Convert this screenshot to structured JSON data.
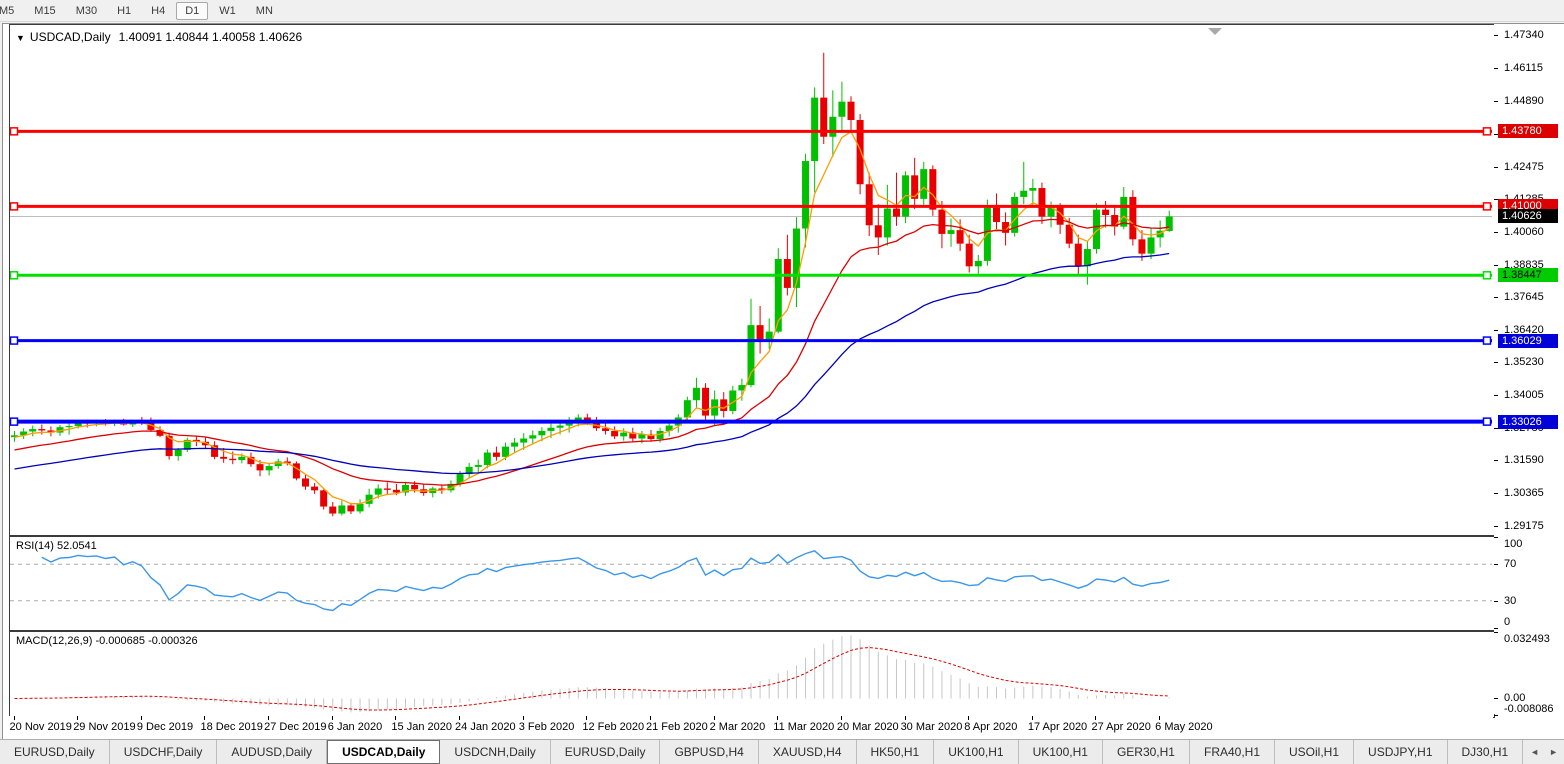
{
  "toolbar": {
    "timeframes": [
      "M5",
      "M15",
      "M30",
      "H1",
      "H4",
      "D1",
      "W1",
      "MN"
    ],
    "active": "D1"
  },
  "chart": {
    "symbol_label": "USDCAD,Daily",
    "ohlc_text": "1.40091 1.40844 1.40058 1.40626",
    "open": "1.40091",
    "high": "1.40844",
    "low": "1.40058",
    "close": "1.40626",
    "shift_marker": "chart-shift-triangle"
  },
  "colors": {
    "bull": "#00c000",
    "bear": "#e80000",
    "ma_fast": "#ff9c00",
    "ma_mid": "#dd0000",
    "ma_slow": "#0000bb",
    "hline_red": "#ff0000",
    "hline_green": "#00e000",
    "hline_blue": "#0000ff",
    "current_price_line": "#bdbdbd",
    "rsi_line": "#3a97e8",
    "rsi_levels": "#a8a8a8",
    "macd_hist": "#c6c6c6",
    "macd_signal": "#e00000",
    "badge_red": "#dd0000",
    "badge_green": "#00cc00",
    "badge_blue": "#0000d8",
    "badge_black": "#000000"
  },
  "price_axis": {
    "ticks": [
      "1.47340",
      "1.46115",
      "1.44890",
      "1.43665",
      "1.42475",
      "1.41285",
      "1.40060",
      "1.38835",
      "1.37645",
      "1.36420",
      "1.35230",
      "1.34005",
      "1.32780",
      "1.31590",
      "1.30365",
      "1.29175"
    ],
    "badges": [
      {
        "value": "1.43780",
        "bg": "#dd0000",
        "fg": "#ffffff"
      },
      {
        "value": "1.41000",
        "bg": "#dd0000",
        "fg": "#ffffff"
      },
      {
        "value": "1.40626",
        "bg": "#000000",
        "fg": "#ffffff"
      },
      {
        "value": "1.38447",
        "bg": "#00cc00",
        "fg": "#000000"
      },
      {
        "value": "1.36029",
        "bg": "#0000d8",
        "fg": "#ffffff"
      },
      {
        "value": "1.33026",
        "bg": "#0000d8",
        "fg": "#ffffff"
      }
    ]
  },
  "hlines": [
    {
      "price": 1.4378,
      "color": "#ff0000",
      "width": 3
    },
    {
      "price": 1.41,
      "color": "#ff0000",
      "width": 3
    },
    {
      "price": 1.38447,
      "color": "#00e000",
      "width": 3
    },
    {
      "price": 1.36029,
      "color": "#0000ff",
      "width": 3
    },
    {
      "price": 1.33026,
      "color": "#0000ff",
      "width": 4
    }
  ],
  "current_price": 1.40626,
  "date_axis": {
    "labels": [
      "20 Nov 2019",
      "29 Nov 2019",
      "9 Dec 2019",
      "18 Dec 2019",
      "27 Dec 2019",
      "6 Jan 2020",
      "15 Jan 2020",
      "24 Jan 2020",
      "3 Feb 2020",
      "12 Feb 2020",
      "21 Feb 2020",
      "2 Mar 2020",
      "11 Mar 2020",
      "20 Mar 2020",
      "30 Mar 2020",
      "8 Apr 2020",
      "17 Apr 2020",
      "27 Apr 2020",
      "6 May 2020"
    ],
    "candles_per_label": 7
  },
  "rsi_panel": {
    "label": "RSI(14) 52.0541",
    "period": 14,
    "current": 52.0541,
    "axis_labels": [
      "100",
      "70",
      "30",
      "0"
    ],
    "axis_values": [
      100,
      70,
      30,
      0
    ],
    "overbought": 70,
    "oversold": 30,
    "ylim": [
      0,
      100
    ]
  },
  "macd_panel": {
    "label": "MACD(12,26,9) -0.000685 -0.000326",
    "params": [
      12,
      26,
      9
    ],
    "macd_value": -0.000685,
    "signal_value": -0.000326,
    "axis_labels": [
      "0.032493",
      "0.00",
      "-0.008086"
    ],
    "axis_values": [
      0.032493,
      0,
      -0.008086
    ],
    "ylim": [
      -0.008086,
      0.032493
    ]
  },
  "tabs": {
    "items": [
      "EURUSD,Daily",
      "USDCHF,Daily",
      "AUDUSD,Daily",
      "USDCAD,Daily",
      "USDCNH,Daily",
      "EURUSD,Daily",
      "GBPUSD,H4",
      "XAUUSD,H4",
      "HK50,H1",
      "UK100,H1",
      "UK100,H1",
      "GER30,H1",
      "FRA40,H1",
      "USOil,H1",
      "USDJPY,H1",
      "DJ30,H1"
    ],
    "active_index": 3,
    "scroll_left": "◄",
    "scroll_right": "►"
  },
  "chart_data": {
    "type": "candlestick",
    "title": "USDCAD,Daily",
    "ylim": [
      1.289,
      1.4772
    ],
    "total_slots": 163,
    "x_labels": [
      "20 Nov 2019",
      "29 Nov 2019",
      "9 Dec 2019",
      "18 Dec 2019",
      "27 Dec 2019",
      "6 Jan 2020",
      "15 Jan 2020",
      "24 Jan 2020",
      "3 Feb 2020",
      "12 Feb 2020",
      "21 Feb 2020",
      "2 Mar 2020",
      "11 Mar 2020",
      "20 Mar 2020",
      "30 Mar 2020",
      "8 Apr 2020",
      "17 Apr 2020",
      "27 Apr 2020",
      "6 May 2020"
    ],
    "moving_averages": [
      {
        "name": "fast",
        "period": 5,
        "color": "#ff9c00",
        "seed_offset": -0.0012
      },
      {
        "name": "mid",
        "period": 21,
        "color": "#dd0000",
        "seed_offset": -0.006
      },
      {
        "name": "slow",
        "period": 50,
        "color": "#0000bb",
        "seed_offset": -0.013
      }
    ],
    "candles": [
      [
        1.3245,
        1.3268,
        1.3228,
        1.3252
      ],
      [
        1.3252,
        1.3278,
        1.3238,
        1.3266
      ],
      [
        1.3266,
        1.3288,
        1.3248,
        1.3275
      ],
      [
        1.3275,
        1.3292,
        1.3255,
        1.327
      ],
      [
        1.327,
        1.3285,
        1.3248,
        1.3262
      ],
      [
        1.3262,
        1.329,
        1.325,
        1.3282
      ],
      [
        1.3282,
        1.3297,
        1.3254,
        1.3286
      ],
      [
        1.3286,
        1.3307,
        1.3277,
        1.3299
      ],
      [
        1.3299,
        1.331,
        1.3281,
        1.3297
      ],
      [
        1.3297,
        1.331,
        1.3285,
        1.3301
      ],
      [
        1.3301,
        1.3312,
        1.3288,
        1.3297
      ],
      [
        1.3297,
        1.331,
        1.3286,
        1.3305
      ],
      [
        1.3305,
        1.3313,
        1.3288,
        1.3292
      ],
      [
        1.3292,
        1.331,
        1.3283,
        1.3306
      ],
      [
        1.3306,
        1.332,
        1.329,
        1.3298
      ],
      [
        1.3298,
        1.3318,
        1.3265,
        1.3272
      ],
      [
        1.3272,
        1.3285,
        1.3245,
        1.325
      ],
      [
        1.325,
        1.3262,
        1.3162,
        1.3175
      ],
      [
        1.3175,
        1.3205,
        1.3158,
        1.3198
      ],
      [
        1.3198,
        1.3243,
        1.319,
        1.3235
      ],
      [
        1.3235,
        1.3248,
        1.3212,
        1.3228
      ],
      [
        1.3228,
        1.3245,
        1.3205,
        1.3215
      ],
      [
        1.3215,
        1.323,
        1.3163,
        1.3172
      ],
      [
        1.3172,
        1.3205,
        1.315,
        1.3165
      ],
      [
        1.3165,
        1.3192,
        1.3145,
        1.316
      ],
      [
        1.316,
        1.3185,
        1.3148,
        1.3172
      ],
      [
        1.3172,
        1.3188,
        1.3135,
        1.3145
      ],
      [
        1.3145,
        1.316,
        1.31,
        1.3122
      ],
      [
        1.3122,
        1.315,
        1.3103,
        1.3138
      ],
      [
        1.3138,
        1.3165,
        1.3128,
        1.3155
      ],
      [
        1.3155,
        1.317,
        1.314,
        1.3148
      ],
      [
        1.3148,
        1.3155,
        1.3085,
        1.3092
      ],
      [
        1.3092,
        1.3105,
        1.305,
        1.3062
      ],
      [
        1.3062,
        1.3075,
        1.3035,
        1.3048
      ],
      [
        1.3048,
        1.3052,
        1.2977,
        1.2988
      ],
      [
        1.2988,
        1.3005,
        1.2952,
        1.2962
      ],
      [
        1.2962,
        1.301,
        1.2955,
        1.2992
      ],
      [
        1.2992,
        1.3002,
        1.296,
        1.297
      ],
      [
        1.297,
        1.3015,
        1.2962,
        1.2998
      ],
      [
        1.2998,
        1.3054,
        1.2985,
        1.3032
      ],
      [
        1.3032,
        1.307,
        1.3018,
        1.3055
      ],
      [
        1.3055,
        1.3078,
        1.3032,
        1.305
      ],
      [
        1.305,
        1.3072,
        1.303,
        1.304
      ],
      [
        1.304,
        1.308,
        1.3028,
        1.3068
      ],
      [
        1.3068,
        1.3082,
        1.304,
        1.3052
      ],
      [
        1.3052,
        1.307,
        1.3028,
        1.3038
      ],
      [
        1.3038,
        1.3062,
        1.3022,
        1.3055
      ],
      [
        1.3055,
        1.307,
        1.3035,
        1.3048
      ],
      [
        1.3048,
        1.3085,
        1.304,
        1.3072
      ],
      [
        1.3072,
        1.312,
        1.3062,
        1.3108
      ],
      [
        1.3108,
        1.315,
        1.3095,
        1.3135
      ],
      [
        1.3135,
        1.3162,
        1.3112,
        1.3142
      ],
      [
        1.3142,
        1.32,
        1.313,
        1.3188
      ],
      [
        1.3188,
        1.321,
        1.3158,
        1.3172
      ],
      [
        1.3172,
        1.3225,
        1.316,
        1.321
      ],
      [
        1.321,
        1.3242,
        1.3188,
        1.3225
      ],
      [
        1.3225,
        1.326,
        1.3198,
        1.324
      ],
      [
        1.324,
        1.327,
        1.3218,
        1.3252
      ],
      [
        1.3252,
        1.3282,
        1.323,
        1.3268
      ],
      [
        1.3268,
        1.3295,
        1.3242,
        1.328
      ],
      [
        1.328,
        1.3302,
        1.3255,
        1.3288
      ],
      [
        1.3288,
        1.332,
        1.3262,
        1.3305
      ],
      [
        1.3305,
        1.333,
        1.3285,
        1.3318
      ],
      [
        1.3318,
        1.3332,
        1.329,
        1.33
      ],
      [
        1.33,
        1.332,
        1.3268,
        1.3278
      ],
      [
        1.3278,
        1.33,
        1.3255,
        1.3268
      ],
      [
        1.3268,
        1.3285,
        1.3238,
        1.3248
      ],
      [
        1.3248,
        1.3278,
        1.3232,
        1.3262
      ],
      [
        1.3262,
        1.328,
        1.3228,
        1.324
      ],
      [
        1.324,
        1.3268,
        1.3222,
        1.3255
      ],
      [
        1.3255,
        1.3272,
        1.3228,
        1.3238
      ],
      [
        1.3238,
        1.328,
        1.3225,
        1.3268
      ],
      [
        1.3268,
        1.3302,
        1.3248,
        1.3288
      ],
      [
        1.3288,
        1.333,
        1.3262,
        1.3318
      ],
      [
        1.3318,
        1.3395,
        1.33,
        1.3382
      ],
      [
        1.3382,
        1.3465,
        1.335,
        1.3428
      ],
      [
        1.3428,
        1.3445,
        1.3305,
        1.3325
      ],
      [
        1.3325,
        1.3418,
        1.3285,
        1.3385
      ],
      [
        1.3385,
        1.3412,
        1.3318,
        1.3342
      ],
      [
        1.3342,
        1.3435,
        1.333,
        1.3418
      ],
      [
        1.3418,
        1.3462,
        1.338,
        1.3438
      ],
      [
        1.3438,
        1.3758,
        1.343,
        1.366
      ],
      [
        1.366,
        1.3731,
        1.3555,
        1.3608
      ],
      [
        1.3608,
        1.3685,
        1.3572,
        1.3636
      ],
      [
        1.3636,
        1.3945,
        1.363,
        1.3905
      ],
      [
        1.3905,
        1.3995,
        1.377,
        1.3798
      ],
      [
        1.3798,
        1.406,
        1.3727,
        1.4018
      ],
      [
        1.4018,
        1.4295,
        1.3948,
        1.4268
      ],
      [
        1.4268,
        1.4541,
        1.4152,
        1.4503
      ],
      [
        1.4503,
        1.4669,
        1.4331,
        1.4358
      ],
      [
        1.4358,
        1.453,
        1.4285,
        1.4432
      ],
      [
        1.4432,
        1.4562,
        1.4382,
        1.4488
      ],
      [
        1.4488,
        1.4508,
        1.4375,
        1.442
      ],
      [
        1.442,
        1.4442,
        1.4145,
        1.4182
      ],
      [
        1.4182,
        1.4225,
        1.399,
        1.403
      ],
      [
        1.403,
        1.4108,
        1.392,
        1.3985
      ],
      [
        1.3985,
        1.418,
        1.3955,
        1.4092
      ],
      [
        1.4092,
        1.4225,
        1.4028,
        1.4062
      ],
      [
        1.4062,
        1.423,
        1.4038,
        1.4215
      ],
      [
        1.4215,
        1.428,
        1.409,
        1.4128
      ],
      [
        1.4128,
        1.4265,
        1.4105,
        1.4238
      ],
      [
        1.4238,
        1.4252,
        1.4065,
        1.4088
      ],
      [
        1.4088,
        1.412,
        1.3945,
        1.3998
      ],
      [
        1.3998,
        1.4055,
        1.395,
        1.4012
      ],
      [
        1.4012,
        1.4052,
        1.3935,
        1.3962
      ],
      [
        1.3962,
        1.3995,
        1.3855,
        1.3878
      ],
      [
        1.3878,
        1.392,
        1.385,
        1.3898
      ],
      [
        1.3898,
        1.4125,
        1.388,
        1.4095
      ],
      [
        1.4095,
        1.4148,
        1.4008,
        1.4042
      ],
      [
        1.4042,
        1.4078,
        1.3955,
        1.4002
      ],
      [
        1.4002,
        1.4152,
        1.3988,
        1.4135
      ],
      [
        1.4135,
        1.4265,
        1.4108,
        1.4158
      ],
      [
        1.4158,
        1.4202,
        1.4102,
        1.4168
      ],
      [
        1.4168,
        1.4188,
        1.4035,
        1.4062
      ],
      [
        1.4062,
        1.4118,
        1.4022,
        1.4098
      ],
      [
        1.4098,
        1.4112,
        1.3998,
        1.4032
      ],
      [
        1.4032,
        1.4058,
        1.3945,
        1.3962
      ],
      [
        1.3962,
        1.3995,
        1.385,
        1.3878
      ],
      [
        1.3878,
        1.3972,
        1.381,
        1.3942
      ],
      [
        1.3942,
        1.4112,
        1.3925,
        1.4088
      ],
      [
        1.4088,
        1.412,
        1.4022,
        1.4068
      ],
      [
        1.4068,
        1.4095,
        1.3992,
        1.4025
      ],
      [
        1.4025,
        1.4172,
        1.4015,
        1.4135
      ],
      [
        1.4135,
        1.416,
        1.3955,
        1.3978
      ],
      [
        1.3978,
        1.4012,
        1.3898,
        1.3925
      ],
      [
        1.3925,
        1.402,
        1.3905,
        1.3985
      ],
      [
        1.3985,
        1.4048,
        1.3948,
        1.401
      ],
      [
        1.40091,
        1.40844,
        1.40058,
        1.40626
      ]
    ]
  }
}
